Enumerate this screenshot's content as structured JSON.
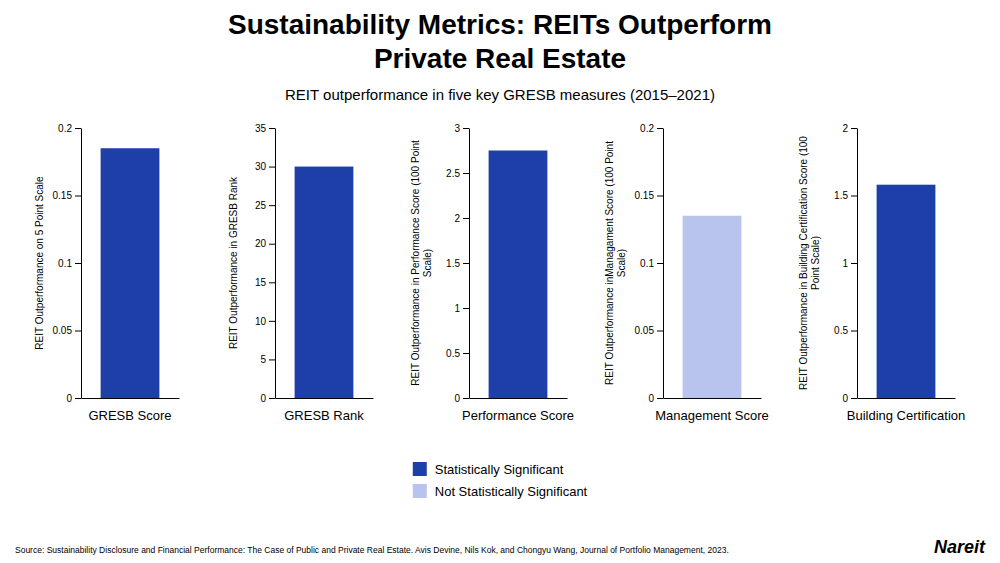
{
  "chart_data": [
    {
      "type": "bar",
      "title": "Sustainability Metrics: REITs Outperform\nPrivate Real Estate",
      "subtitle": "REIT outperformance in five key GRESB measures (2015–2021)",
      "annotations": [
        "Source: Sustainability Disclosure and Financial Performance: The Case of Public and Private Real Estate. Avis Devine, Nils Kok, and Chongyu Wang, Journal of Portfolio Management, 2023.",
        "Nareit"
      ],
      "legend": "bottom",
      "categories": [
        null
      ],
      "series": [
        {
          "name": "Statistically Significant",
          "color": "#1f3fa8",
          "values": [
            0.185
          ]
        }
      ],
      "x_label": "GRESB Score",
      "y_label": "REIT Outperformance on 5 Point Scale",
      "ylim": [
        0,
        0.2
      ],
      "yticks": [
        0,
        0.05,
        0.1,
        0.15,
        0.2
      ],
      "tick_labels": "y"
    },
    {
      "type": "bar",
      "categories": [
        null
      ],
      "series": [
        {
          "name": "Statistically Significant",
          "color": "#1f3fa8",
          "values": [
            30.0
          ]
        }
      ],
      "x_label": "GRESB Rank",
      "y_label": "REIT Outperformance in GRESB Rank",
      "ylim": [
        0,
        35
      ],
      "yticks": [
        0,
        5,
        10,
        15,
        20,
        25,
        30,
        35
      ],
      "tick_labels": "y"
    },
    {
      "type": "bar",
      "categories": [
        null
      ],
      "series": [
        {
          "name": "Statistically Significant",
          "color": "#1f3fa8",
          "values": [
            2.75
          ]
        }
      ],
      "x_label": "Performance Score",
      "y_label": "REIT Outperformance in Performance Score (100 Point Scale)",
      "ylim": [
        0,
        3
      ],
      "yticks": [
        0,
        0.5,
        1,
        1.5,
        2,
        2.5,
        3
      ],
      "tick_labels": "y"
    },
    {
      "type": "bar",
      "categories": [
        null
      ],
      "series": [
        {
          "name": "Not Statistically Significant",
          "color": "#b8c4ee",
          "values": [
            0.135
          ]
        }
      ],
      "x_label": "Management Score",
      "y_label": "REIT Outperformance inManagament Score (100 Point Scale)",
      "ylim": [
        0,
        0.2
      ],
      "yticks": [
        0,
        0.05,
        0.1,
        0.15,
        0.2
      ],
      "tick_labels": "y"
    },
    {
      "type": "bar",
      "categories": [
        null
      ],
      "series": [
        {
          "name": "Statistically Significant",
          "color": "#1f3fa8",
          "values": [
            1.58
          ]
        }
      ],
      "x_label": "Building Certification",
      "y_label": "REIT Outperformance in Building Certification Score (100 Point Scale)",
      "ylim": [
        0,
        2
      ],
      "yticks": [
        0,
        0.5,
        1,
        1.5,
        2
      ],
      "tick_labels": "y"
    }
  ]
}
